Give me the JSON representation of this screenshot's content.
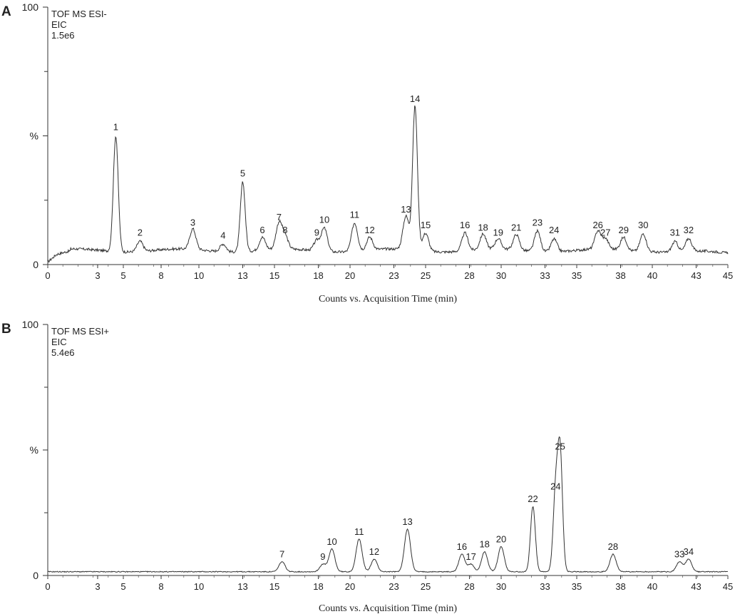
{
  "chart_data": [
    {
      "panel_label": "A",
      "type": "line",
      "info_lines": [
        "TOF MS ESI-",
        "EIC",
        "1.5e6"
      ],
      "ylabel": "%",
      "ytick_labels": [
        "100",
        "%",
        "0"
      ],
      "xlabel": "Counts vs. Acquisition Time (min)",
      "xlim": [
        0,
        45
      ],
      "ylim": [
        0,
        100
      ],
      "xtick_labels": [
        "0",
        "3",
        "5",
        "8",
        "10",
        "13",
        "15",
        "18",
        "20",
        "23",
        "25",
        "28",
        "30",
        "33",
        "35",
        "38",
        "40",
        "43",
        "45"
      ],
      "peaks": [
        {
          "label": "1",
          "rt": 4.5,
          "height": 45
        },
        {
          "label": "2",
          "rt": 6.1,
          "height": 4
        },
        {
          "label": "3",
          "rt": 9.6,
          "height": 8
        },
        {
          "label": "4",
          "rt": 11.6,
          "height": 3
        },
        {
          "label": "5",
          "rt": 12.9,
          "height": 27
        },
        {
          "label": "6",
          "rt": 14.2,
          "height": 5
        },
        {
          "label": "7",
          "rt": 15.3,
          "height": 10
        },
        {
          "label": "8",
          "rt": 15.7,
          "height": 5
        },
        {
          "label": "9",
          "rt": 17.8,
          "height": 4
        },
        {
          "label": "10",
          "rt": 18.3,
          "height": 9
        },
        {
          "label": "11",
          "rt": 20.3,
          "height": 11
        },
        {
          "label": "12",
          "rt": 21.3,
          "height": 5
        },
        {
          "label": "13",
          "rt": 23.7,
          "height": 13
        },
        {
          "label": "14",
          "rt": 24.3,
          "height": 56
        },
        {
          "label": "15",
          "rt": 25.0,
          "height": 7
        },
        {
          "label": "16",
          "rt": 27.6,
          "height": 7
        },
        {
          "label": "18",
          "rt": 28.8,
          "height": 6
        },
        {
          "label": "19",
          "rt": 29.8,
          "height": 4
        },
        {
          "label": "21",
          "rt": 31.0,
          "height": 6
        },
        {
          "label": "23",
          "rt": 32.4,
          "height": 8
        },
        {
          "label": "24",
          "rt": 33.5,
          "height": 5
        },
        {
          "label": "26",
          "rt": 36.4,
          "height": 7
        },
        {
          "label": "27",
          "rt": 36.9,
          "height": 4
        },
        {
          "label": "29",
          "rt": 38.1,
          "height": 5
        },
        {
          "label": "30",
          "rt": 39.4,
          "height": 7
        },
        {
          "label": "31",
          "rt": 41.5,
          "height": 4
        },
        {
          "label": "32",
          "rt": 42.4,
          "height": 5
        }
      ]
    },
    {
      "panel_label": "B",
      "type": "line",
      "info_lines": [
        "TOF MS ESI+",
        "EIC",
        "5.4e6"
      ],
      "ylabel": "%",
      "ytick_labels": [
        "100",
        "%",
        "0"
      ],
      "xlabel": "Counts vs. Acquisition Time (min)",
      "xlim": [
        0,
        45
      ],
      "ylim": [
        0,
        100
      ],
      "xtick_labels": [
        "0",
        "3",
        "5",
        "8",
        "10",
        "13",
        "15",
        "18",
        "20",
        "23",
        "25",
        "28",
        "30",
        "33",
        "35",
        "38",
        "40",
        "43",
        "45"
      ],
      "peaks": [
        {
          "label": "7",
          "rt": 15.5,
          "height": 4
        },
        {
          "label": "9",
          "rt": 18.2,
          "height": 3
        },
        {
          "label": "10",
          "rt": 18.8,
          "height": 9
        },
        {
          "label": "11",
          "rt": 20.6,
          "height": 13
        },
        {
          "label": "12",
          "rt": 21.6,
          "height": 5
        },
        {
          "label": "13",
          "rt": 23.8,
          "height": 17
        },
        {
          "label": "16",
          "rt": 27.4,
          "height": 7
        },
        {
          "label": "17",
          "rt": 28.0,
          "height": 3
        },
        {
          "label": "18",
          "rt": 28.9,
          "height": 8
        },
        {
          "label": "20",
          "rt": 30.0,
          "height": 10
        },
        {
          "label": "22",
          "rt": 32.1,
          "height": 26
        },
        {
          "label": "24",
          "rt": 33.6,
          "height": 31
        },
        {
          "label": "25",
          "rt": 33.9,
          "height": 47
        },
        {
          "label": "28",
          "rt": 37.4,
          "height": 7
        },
        {
          "label": "33",
          "rt": 41.8,
          "height": 4
        },
        {
          "label": "34",
          "rt": 42.4,
          "height": 5
        }
      ]
    }
  ]
}
